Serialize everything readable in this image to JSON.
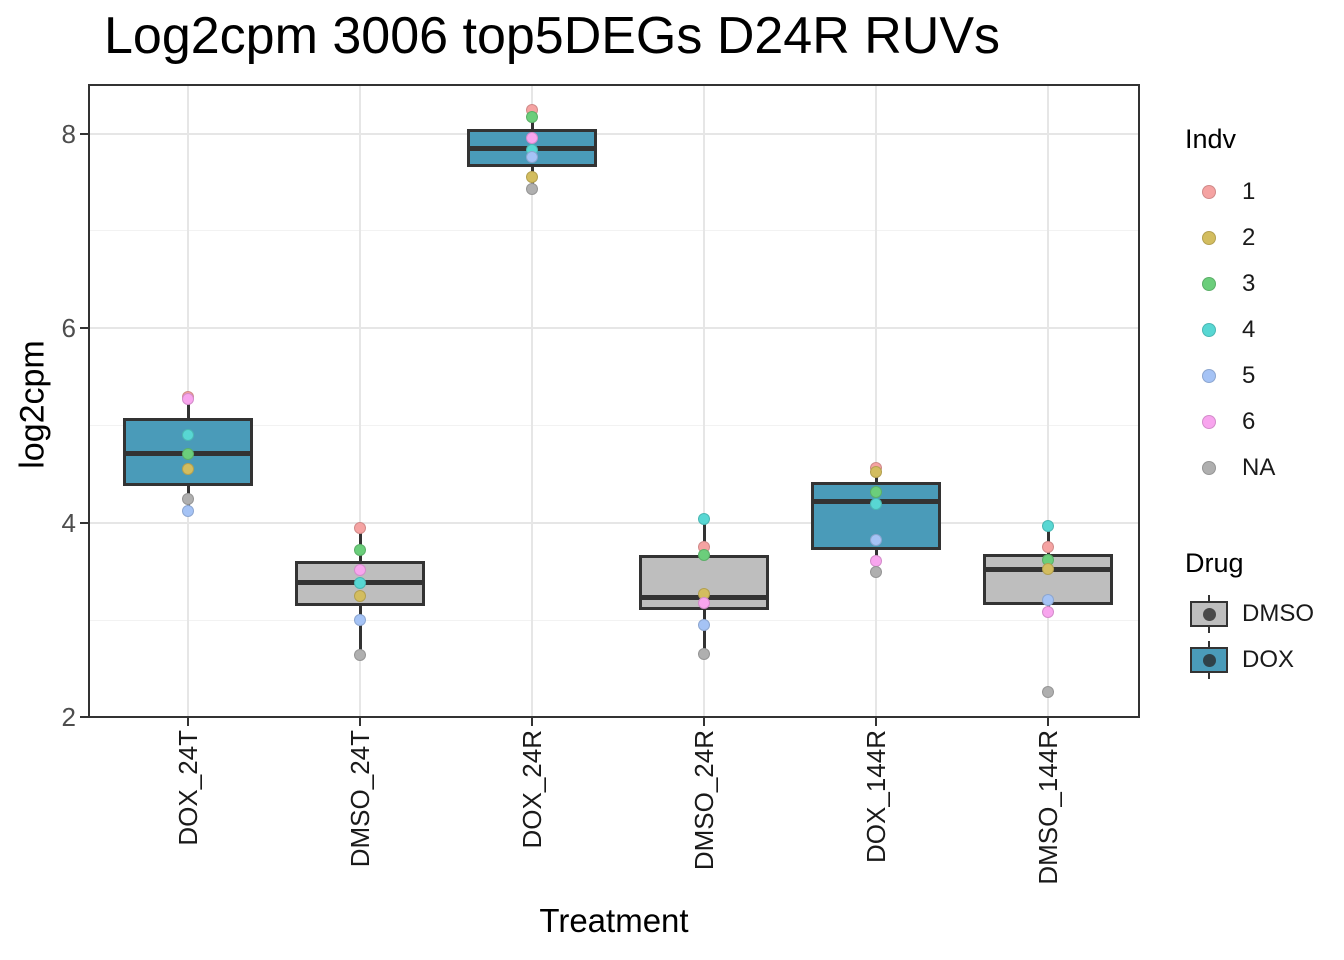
{
  "chart_data": {
    "type": "boxplot",
    "title": "Log2cpm 3006 top5DEGs D24R RUVs",
    "xlabel": "Treatment",
    "ylabel": "log2cpm",
    "ylim": [
      2,
      8.5
    ],
    "y_ticks": [
      8,
      6,
      4,
      2
    ],
    "y_minor_gridlines": [
      7,
      5,
      3
    ],
    "grid": true,
    "categories": [
      "DOX_24T",
      "DMSO_24T",
      "DOX_24R",
      "DMSO_24R",
      "DOX_144R",
      "DMSO_144R"
    ],
    "drug_colors": {
      "DMSO": "#BEBEBE",
      "DOX": "#4A9BB9"
    },
    "indv_colors": {
      "1": "#F5A3A2",
      "2": "#D3BD5F",
      "3": "#6BCE7B",
      "4": "#58D7D3",
      "5": "#A5C3F5",
      "6": "#F8A5EE",
      "NA": "#AFAFAF"
    },
    "boxes": [
      {
        "category": "DOX_24T",
        "drug": "DOX",
        "q1": 4.38,
        "median": 4.71,
        "q3": 5.08,
        "whisker_low": 4.12,
        "whisker_high": 5.27,
        "points": [
          {
            "indv": "1",
            "value": 5.29
          },
          {
            "indv": "6",
            "value": 5.27
          },
          {
            "indv": "4",
            "value": 4.9
          },
          {
            "indv": "3",
            "value": 4.71
          },
          {
            "indv": "2",
            "value": 4.55
          },
          {
            "indv": "NA",
            "value": 4.24
          },
          {
            "indv": "5",
            "value": 4.12
          }
        ]
      },
      {
        "category": "DMSO_24T",
        "drug": "DMSO",
        "q1": 3.14,
        "median": 3.39,
        "q3": 3.61,
        "whisker_low": 2.64,
        "whisker_high": 3.95,
        "points": [
          {
            "indv": "1",
            "value": 3.95
          },
          {
            "indv": "3",
            "value": 3.72
          },
          {
            "indv": "6",
            "value": 3.51
          },
          {
            "indv": "4",
            "value": 3.38
          },
          {
            "indv": "2",
            "value": 3.25
          },
          {
            "indv": "5",
            "value": 3.0
          },
          {
            "indv": "NA",
            "value": 2.64
          }
        ]
      },
      {
        "category": "DOX_24R",
        "drug": "DOX",
        "q1": 7.66,
        "median": 7.85,
        "q3": 8.05,
        "whisker_low": 7.43,
        "whisker_high": 8.22,
        "points": [
          {
            "indv": "1",
            "value": 8.24
          },
          {
            "indv": "3",
            "value": 8.17
          },
          {
            "indv": "6",
            "value": 7.95
          },
          {
            "indv": "4",
            "value": 7.83
          },
          {
            "indv": "5",
            "value": 7.76
          },
          {
            "indv": "2",
            "value": 7.55
          },
          {
            "indv": "NA",
            "value": 7.43
          }
        ]
      },
      {
        "category": "DMSO_24R",
        "drug": "DMSO",
        "q1": 3.1,
        "median": 3.23,
        "q3": 3.67,
        "whisker_low": 2.65,
        "whisker_high": 4.04,
        "points": [
          {
            "indv": "4",
            "value": 4.04
          },
          {
            "indv": "1",
            "value": 3.75
          },
          {
            "indv": "3",
            "value": 3.67
          },
          {
            "indv": "2",
            "value": 3.27
          },
          {
            "indv": "6",
            "value": 3.17
          },
          {
            "indv": "5",
            "value": 2.95
          },
          {
            "indv": "NA",
            "value": 2.65
          }
        ]
      },
      {
        "category": "DOX_144R",
        "drug": "DOX",
        "q1": 3.72,
        "median": 4.22,
        "q3": 4.42,
        "whisker_low": 3.49,
        "whisker_high": 4.53,
        "points": [
          {
            "indv": "1",
            "value": 4.56
          },
          {
            "indv": "2",
            "value": 4.52
          },
          {
            "indv": "3",
            "value": 4.32
          },
          {
            "indv": "4",
            "value": 4.19
          },
          {
            "indv": "5",
            "value": 3.82
          },
          {
            "indv": "6",
            "value": 3.61
          },
          {
            "indv": "NA",
            "value": 3.49
          }
        ]
      },
      {
        "category": "DMSO_144R",
        "drug": "DMSO",
        "q1": 3.15,
        "median": 3.52,
        "q3": 3.68,
        "whisker_low": 3.08,
        "whisker_high": 3.97,
        "points": [
          {
            "indv": "4",
            "value": 3.97
          },
          {
            "indv": "1",
            "value": 3.75
          },
          {
            "indv": "3",
            "value": 3.62
          },
          {
            "indv": "2",
            "value": 3.52
          },
          {
            "indv": "5",
            "value": 3.21
          },
          {
            "indv": "6",
            "value": 3.08
          },
          {
            "indv": "NA",
            "value": 2.26
          }
        ]
      }
    ],
    "legend": {
      "indv_title": "Indv",
      "indv_entries": [
        "1",
        "2",
        "3",
        "4",
        "5",
        "6",
        "NA"
      ],
      "drug_title": "Drug",
      "drug_entries": [
        "DMSO",
        "DOX"
      ]
    }
  }
}
